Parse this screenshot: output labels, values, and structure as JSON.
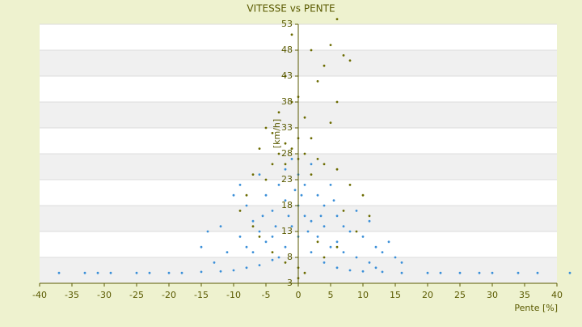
{
  "chart_data": {
    "type": "scatter",
    "title": "VITESSE vs PENTE",
    "xlabel": "Pente [%]",
    "ylabel": "[km/h]",
    "xlim": [
      -40,
      40
    ],
    "xticks": [
      -40,
      -35,
      -30,
      -25,
      -20,
      -15,
      -10,
      -5,
      0,
      5,
      10,
      15,
      20,
      25,
      30,
      35,
      40
    ],
    "ylim": [
      3,
      53
    ],
    "yticks": [
      3,
      8,
      13,
      18,
      23,
      28,
      33,
      38,
      43,
      48,
      53
    ],
    "grid": true,
    "series": [
      {
        "color": "#3a8fd8",
        "x": [
          -37,
          -33,
          -31,
          -29,
          -25,
          -23,
          -20,
          -18,
          -15,
          -12,
          -10,
          -8,
          -6,
          -4,
          -2,
          0,
          2,
          4,
          6,
          8,
          10,
          13,
          16,
          20,
          22,
          25,
          28,
          30,
          34,
          37,
          42,
          -12,
          -14,
          -15,
          -10,
          -9,
          -8,
          -7,
          -6,
          -5,
          -4,
          -3,
          -2,
          -1,
          0,
          1,
          2,
          3,
          4,
          5,
          6,
          7,
          8,
          9,
          10,
          11,
          12,
          13,
          15,
          14,
          -11,
          -9,
          -7,
          -5,
          -3,
          -1,
          1,
          3,
          5,
          7,
          9,
          -6,
          -4,
          -2,
          0,
          2,
          4,
          6,
          -8,
          11,
          -13,
          -0.5,
          0.5,
          -1.5,
          1.5,
          -3.5,
          3.5,
          -5.5,
          5.5,
          16,
          12
        ],
        "values": [
          5,
          5,
          5,
          5,
          5,
          5,
          5,
          5,
          5.2,
          5.3,
          5.5,
          6,
          6.5,
          7.5,
          10,
          12,
          9,
          7,
          6,
          5.5,
          5.3,
          5.2,
          5,
          5,
          5,
          5,
          5,
          5,
          5,
          5,
          5,
          14,
          13,
          10,
          20,
          22,
          18,
          15,
          24,
          20,
          17,
          22,
          25,
          27,
          24,
          22,
          26,
          20,
          18,
          22,
          16,
          14,
          13,
          17,
          12,
          15,
          10,
          9,
          8,
          11,
          9,
          12,
          9,
          11,
          8,
          14,
          16,
          12,
          10,
          9,
          8,
          13,
          12,
          19,
          18,
          15,
          14,
          11,
          10,
          7,
          7,
          21,
          20,
          16,
          13,
          14,
          16,
          16,
          19,
          7,
          6
        ]
      },
      {
        "color": "#6b6b00",
        "x": [
          -1,
          5,
          2,
          7,
          8,
          4,
          -2,
          3,
          0,
          -1,
          6,
          -3,
          1,
          -5,
          -4,
          2,
          -2,
          0,
          5,
          -6,
          -3,
          1,
          3,
          -1,
          0,
          4,
          -4,
          -2,
          6,
          -7,
          2,
          -5,
          8,
          -8,
          10,
          -9,
          11,
          9,
          -6,
          6,
          -4,
          4,
          0,
          1,
          -2,
          3,
          -7,
          7,
          0,
          6
        ],
        "values": [
          51,
          49,
          48,
          47,
          46,
          45,
          43,
          42,
          39,
          38,
          38,
          36,
          35,
          33,
          32,
          31,
          30,
          31,
          34,
          29,
          28,
          28,
          27,
          29,
          27,
          26,
          26,
          26,
          25,
          24,
          24,
          23,
          22,
          20,
          20,
          17,
          16,
          13,
          12,
          10,
          9,
          8,
          6,
          5,
          7,
          11,
          14,
          17,
          4,
          54
        ]
      }
    ]
  }
}
